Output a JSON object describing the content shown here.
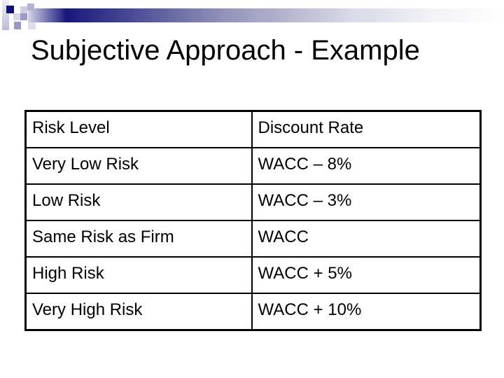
{
  "slide": {
    "title": "Subjective Approach - Example"
  },
  "table": {
    "columns": [
      "Risk Level",
      "Discount Rate"
    ],
    "rows": [
      [
        "Very Low Risk",
        "WACC – 8%"
      ],
      [
        "Low Risk",
        "WACC – 3%"
      ],
      [
        "Same Risk as Firm",
        "WACC"
      ],
      [
        "High Risk",
        "WACC + 5%"
      ],
      [
        "Very High Risk",
        "WACC + 10%"
      ]
    ]
  },
  "colors": {
    "accent_dark_navy": "#10107a",
    "accent_mid_lavender": "#9595ba",
    "accent_light_lavender": "#d8d8ea",
    "text": "#000000",
    "background": "#ffffff",
    "table_border": "#000000"
  },
  "icons": {
    "header_decoration": "pixel-squares-gradient-bar"
  }
}
